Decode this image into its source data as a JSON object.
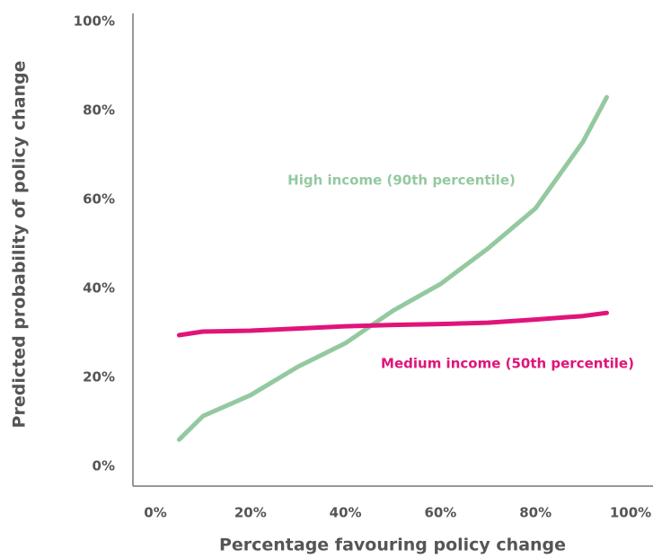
{
  "chart_data": {
    "type": "line",
    "xlabel": "Percentage favouring policy change",
    "ylabel": "Predicted probability of policy change",
    "x": [
      5,
      10,
      20,
      30,
      40,
      50,
      60,
      70,
      80,
      90,
      95
    ],
    "series": [
      {
        "name": "High income (90th percentile)",
        "color": "#94c9a0",
        "values": [
          6,
          11.3,
          16,
          22.4,
          27.7,
          35,
          41,
          49,
          58,
          73,
          83
        ]
      },
      {
        "name": "Medium income (50th percentile)",
        "color": "#e0147a",
        "values": [
          29.5,
          30.3,
          30.5,
          31,
          31.5,
          31.8,
          32,
          32.3,
          33,
          33.8,
          34.5
        ]
      }
    ],
    "xlim": [
      0,
      100
    ],
    "ylim": [
      0,
      100
    ],
    "xticks": [
      {
        "value": 0,
        "label": "0%"
      },
      {
        "value": 20,
        "label": "20%"
      },
      {
        "value": 40,
        "label": "40%"
      },
      {
        "value": 60,
        "label": "60%"
      },
      {
        "value": 80,
        "label": "80%"
      },
      {
        "value": 100,
        "label": "100%"
      }
    ],
    "yticks": [
      {
        "value": 0,
        "label": "0%"
      },
      {
        "value": 20,
        "label": "20%"
      },
      {
        "value": 40,
        "label": "40%"
      },
      {
        "value": 60,
        "label": "60%"
      },
      {
        "value": 80,
        "label": "80%"
      },
      {
        "value": 100,
        "label": "100%"
      }
    ],
    "grid": false
  }
}
